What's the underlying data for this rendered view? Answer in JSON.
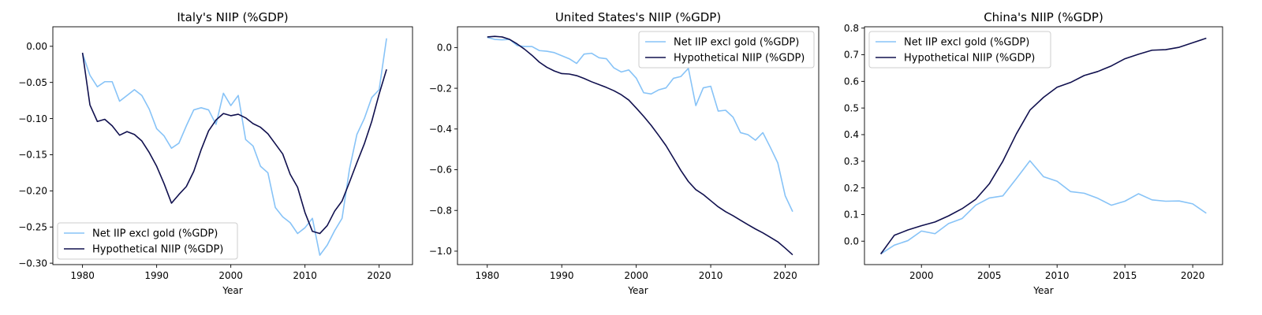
{
  "colors": {
    "net": "#87c3f7",
    "hyp": "#10104e"
  },
  "chart_data": [
    {
      "type": "line",
      "title": "Italy's NIIP (%GDP)",
      "xlabel": "Year",
      "xlim": [
        1976,
        2024.5
      ],
      "ylim": [
        -0.302,
        0.027
      ],
      "xticks": [
        1980,
        1990,
        2000,
        2010,
        2020
      ],
      "yticks": [
        0.0,
        -0.05,
        -0.1,
        -0.15,
        -0.2,
        -0.25,
        -0.3
      ],
      "ytick_labels": [
        "0.00",
        "−0.05",
        "−0.10",
        "−0.15",
        "−0.20",
        "−0.25",
        "−0.30"
      ],
      "legend": "lower-left",
      "x": [
        1980,
        1981,
        1982,
        1983,
        1984,
        1985,
        1986,
        1987,
        1988,
        1989,
        1990,
        1991,
        1992,
        1993,
        1994,
        1995,
        1996,
        1997,
        1998,
        1999,
        2000,
        2001,
        2002,
        2003,
        2004,
        2005,
        2006,
        2007,
        2008,
        2009,
        2010,
        2011,
        2012,
        2013,
        2014,
        2015,
        2016,
        2017,
        2018,
        2019,
        2020,
        2021
      ],
      "series": [
        {
          "name": "Net IIP excl gold (%GDP)",
          "values": [
            -0.01,
            -0.04,
            -0.056,
            -0.049,
            -0.049,
            -0.076,
            -0.068,
            -0.06,
            -0.068,
            -0.087,
            -0.114,
            -0.124,
            -0.141,
            -0.134,
            -0.11,
            -0.088,
            -0.085,
            -0.088,
            -0.108,
            -0.065,
            -0.082,
            -0.068,
            -0.129,
            -0.138,
            -0.166,
            -0.175,
            -0.223,
            -0.236,
            -0.244,
            -0.259,
            -0.251,
            -0.238,
            -0.289,
            -0.275,
            -0.255,
            -0.238,
            -0.17,
            -0.122,
            -0.1,
            -0.071,
            -0.06,
            0.011
          ]
        },
        {
          "name": "Hypothetical NIIP (%GDP)",
          "values": [
            -0.009,
            -0.081,
            -0.104,
            -0.101,
            -0.11,
            -0.123,
            -0.118,
            -0.122,
            -0.131,
            -0.147,
            -0.166,
            -0.19,
            -0.217,
            -0.205,
            -0.194,
            -0.173,
            -0.143,
            -0.117,
            -0.102,
            -0.093,
            -0.096,
            -0.094,
            -0.099,
            -0.107,
            -0.112,
            -0.121,
            -0.135,
            -0.149,
            -0.177,
            -0.195,
            -0.23,
            -0.256,
            -0.259,
            -0.248,
            -0.228,
            -0.214,
            -0.188,
            -0.161,
            -0.135,
            -0.104,
            -0.066,
            -0.032
          ]
        }
      ]
    },
    {
      "type": "line",
      "title": "United States's NIIP (%GDP)",
      "xlabel": "Year",
      "xlim": [
        1976,
        2024.5
      ],
      "ylim": [
        -1.066,
        0.102
      ],
      "xticks": [
        1980,
        1990,
        2000,
        2010,
        2020
      ],
      "yticks": [
        0.0,
        -0.2,
        -0.4,
        -0.6,
        -0.8,
        -1.0
      ],
      "ytick_labels": [
        "0.0",
        "−0.2",
        "−0.4",
        "−0.6",
        "−0.8",
        "−1.0"
      ],
      "legend": "upper-right",
      "x": [
        1980,
        1981,
        1982,
        1983,
        1984,
        1985,
        1986,
        1987,
        1988,
        1989,
        1990,
        1991,
        1992,
        1993,
        1994,
        1995,
        1996,
        1997,
        1998,
        1999,
        2000,
        2001,
        2002,
        2003,
        2004,
        2005,
        2006,
        2007,
        2008,
        2009,
        2010,
        2011,
        2012,
        2013,
        2014,
        2015,
        2016,
        2017,
        2018,
        2019,
        2020,
        2021
      ],
      "series": [
        {
          "name": "Net IIP excl gold (%GDP)",
          "values": [
            0.05,
            0.04,
            0.038,
            0.04,
            0.01,
            0.005,
            0.005,
            -0.015,
            -0.018,
            -0.025,
            -0.04,
            -0.055,
            -0.078,
            -0.032,
            -0.028,
            -0.05,
            -0.055,
            -0.1,
            -0.12,
            -0.11,
            -0.15,
            -0.222,
            -0.228,
            -0.208,
            -0.198,
            -0.151,
            -0.142,
            -0.102,
            -0.285,
            -0.198,
            -0.19,
            -0.312,
            -0.308,
            -0.342,
            -0.418,
            -0.428,
            -0.455,
            -0.418,
            -0.49,
            -0.566,
            -0.728,
            -0.806
          ]
        },
        {
          "name": "Hypothetical NIIP (%GDP)",
          "values": [
            0.052,
            0.055,
            0.052,
            0.04,
            0.018,
            -0.008,
            -0.038,
            -0.072,
            -0.097,
            -0.115,
            -0.128,
            -0.13,
            -0.138,
            -0.152,
            -0.168,
            -0.182,
            -0.196,
            -0.212,
            -0.232,
            -0.258,
            -0.297,
            -0.338,
            -0.382,
            -0.431,
            -0.482,
            -0.543,
            -0.604,
            -0.658,
            -0.698,
            -0.722,
            -0.752,
            -0.782,
            -0.806,
            -0.826,
            -0.848,
            -0.87,
            -0.891,
            -0.91,
            -0.932,
            -0.954,
            -0.985,
            -1.018
          ]
        }
      ]
    },
    {
      "type": "line",
      "title": "China's NIIP (%GDP)",
      "xlabel": "Year",
      "xlim": [
        1995.8,
        2022.2
      ],
      "ylim": [
        -0.088,
        0.805
      ],
      "xticks": [
        2000,
        2005,
        2010,
        2015,
        2020
      ],
      "yticks": [
        0.0,
        0.1,
        0.2,
        0.3,
        0.4,
        0.5,
        0.6,
        0.7,
        0.8
      ],
      "ytick_labels": [
        "0.0",
        "0.1",
        "0.2",
        "0.3",
        "0.4",
        "0.5",
        "0.6",
        "0.7",
        "0.8"
      ],
      "legend": "upper-left",
      "x": [
        1997,
        1998,
        1999,
        2000,
        2001,
        2002,
        2003,
        2004,
        2005,
        2006,
        2007,
        2008,
        2009,
        2010,
        2011,
        2012,
        2013,
        2014,
        2015,
        2016,
        2017,
        2018,
        2019,
        2020,
        2021
      ],
      "series": [
        {
          "name": "Net IIP excl gold (%GDP)",
          "values": [
            -0.048,
            -0.015,
            0.002,
            0.038,
            0.028,
            0.066,
            0.085,
            0.135,
            0.162,
            0.17,
            0.235,
            0.302,
            0.242,
            0.225,
            0.186,
            0.18,
            0.161,
            0.135,
            0.15,
            0.178,
            0.155,
            0.15,
            0.151,
            0.14,
            0.105
          ]
        },
        {
          "name": "Hypothetical NIIP (%GDP)",
          "values": [
            -0.048,
            0.022,
            0.042,
            0.058,
            0.072,
            0.095,
            0.122,
            0.157,
            0.215,
            0.3,
            0.403,
            0.492,
            0.54,
            0.578,
            0.596,
            0.622,
            0.637,
            0.658,
            0.685,
            0.702,
            0.717,
            0.719,
            0.728,
            0.745,
            0.762
          ]
        }
      ]
    }
  ]
}
